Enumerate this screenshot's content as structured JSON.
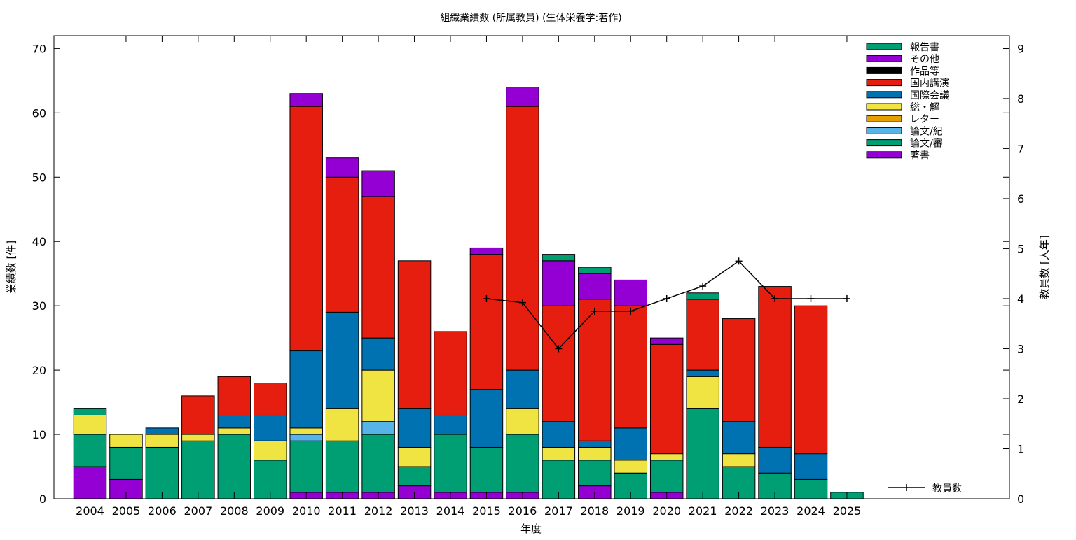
{
  "chart_data": {
    "type": "bar",
    "stacked": true,
    "title": "組織業績数 (所属教員) (生体栄養学:著作)",
    "xlabel": "年度",
    "ylabel": "業績数 [件]",
    "y2label": "教員数 [人年]",
    "ylim": [
      0,
      72
    ],
    "y2lim": [
      0,
      9.257
    ],
    "yticks": [
      0,
      10,
      20,
      30,
      40,
      50,
      60,
      70
    ],
    "y2ticks": [
      0,
      1,
      2,
      3,
      4,
      5,
      6,
      7,
      8,
      9
    ],
    "grid": false,
    "legend_position": "top-right",
    "categories": [
      "2004",
      "2005",
      "2006",
      "2007",
      "2008",
      "2009",
      "2010",
      "2011",
      "2012",
      "2013",
      "2014",
      "2015",
      "2016",
      "2017",
      "2018",
      "2019",
      "2020",
      "2021",
      "2022",
      "2023",
      "2024",
      "2025"
    ],
    "series": [
      {
        "name": "著書",
        "color": "#9400d3",
        "values": [
          5,
          3,
          0,
          0,
          0,
          0,
          1,
          1,
          1,
          2,
          1,
          1,
          1,
          0,
          2,
          0,
          1,
          0,
          0,
          0,
          0,
          0
        ]
      },
      {
        "name": "論文/審",
        "color": "#009e73",
        "values": [
          5,
          5,
          8,
          9,
          10,
          6,
          8,
          8,
          9,
          3,
          9,
          7,
          9,
          6,
          4,
          4,
          5,
          14,
          5,
          4,
          3,
          1
        ]
      },
      {
        "name": "論文/紀",
        "color": "#56b4e9",
        "values": [
          0,
          0,
          0,
          0,
          0,
          0,
          1,
          0,
          2,
          0,
          0,
          0,
          0,
          0,
          0,
          0,
          0,
          0,
          0,
          0,
          0,
          0
        ]
      },
      {
        "name": "レター",
        "color": "#e69f00",
        "values": [
          0,
          0,
          0,
          0,
          0,
          0,
          0,
          0,
          0,
          0,
          0,
          0,
          0,
          0,
          0,
          0,
          0,
          0,
          0,
          0,
          0,
          0
        ]
      },
      {
        "name": "総・解",
        "color": "#f0e442",
        "values": [
          3,
          2,
          2,
          1,
          1,
          3,
          1,
          5,
          8,
          3,
          0,
          0,
          4,
          2,
          2,
          2,
          1,
          5,
          2,
          0,
          0,
          0
        ]
      },
      {
        "name": "国際会議",
        "color": "#0072b2",
        "values": [
          0,
          0,
          1,
          0,
          2,
          4,
          12,
          15,
          5,
          6,
          3,
          9,
          6,
          4,
          1,
          5,
          0,
          1,
          5,
          4,
          4,
          0
        ]
      },
      {
        "name": "国内講演",
        "color": "#e51e10",
        "values": [
          0,
          0,
          0,
          6,
          6,
          5,
          38,
          21,
          22,
          23,
          13,
          21,
          41,
          18,
          22,
          19,
          17,
          11,
          16,
          25,
          23,
          0
        ]
      },
      {
        "name": "作品等",
        "color": "#000000",
        "values": [
          0,
          0,
          0,
          0,
          0,
          0,
          0,
          0,
          0,
          0,
          0,
          0,
          0,
          0,
          0,
          0,
          0,
          0,
          0,
          0,
          0,
          0
        ]
      },
      {
        "name": "その他",
        "color": "#9400d3",
        "values": [
          0,
          0,
          0,
          0,
          0,
          0,
          2,
          3,
          4,
          0,
          0,
          1,
          3,
          7,
          4,
          4,
          1,
          0,
          0,
          0,
          0,
          0
        ]
      },
      {
        "name": "報告書",
        "color": "#009e73",
        "values": [
          1,
          0,
          0,
          0,
          0,
          0,
          0,
          0,
          0,
          0,
          0,
          0,
          0,
          1,
          1,
          0,
          0,
          1,
          0,
          0,
          0,
          0
        ]
      }
    ],
    "line_series": {
      "name": "教員数",
      "color": "#000000",
      "x": [
        "2015",
        "2016",
        "2017",
        "2018",
        "2019",
        "2020",
        "2021",
        "2022",
        "2023",
        "2024",
        "2025"
      ],
      "values": [
        4.0,
        3.92,
        3.0,
        3.75,
        3.75,
        4.0,
        4.25,
        4.75,
        4.0,
        4.0,
        4.0
      ]
    }
  }
}
